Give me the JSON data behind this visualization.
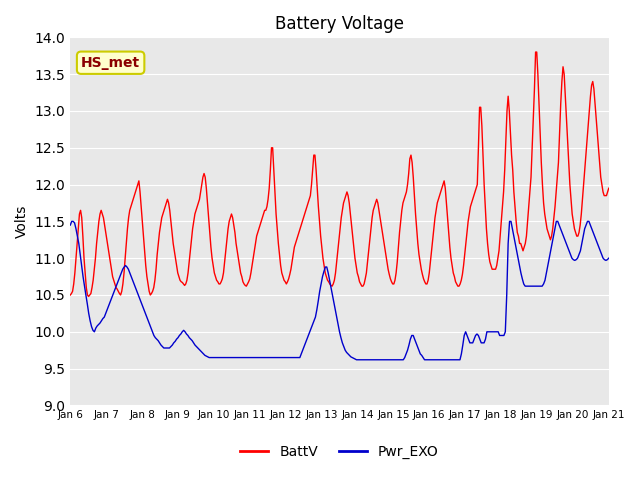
{
  "title": "Battery Voltage",
  "ylabel": "Volts",
  "ylim": [
    9.0,
    14.0
  ],
  "yticks": [
    9.0,
    9.5,
    10.0,
    10.5,
    11.0,
    11.5,
    12.0,
    12.5,
    13.0,
    13.5,
    14.0
  ],
  "bg_color": "#e8e8e8",
  "fig_bg_color": "#ffffff",
  "line1_color": "#ff0000",
  "line2_color": "#0000cc",
  "line1_label": "BattV",
  "line2_label": "Pwr_EXO",
  "label_box_text": "HS_met",
  "label_box_facecolor": "#ffffcc",
  "label_box_edgecolor": "#cccc00",
  "label_box_textcolor": "#8b0000",
  "xtick_labels": [
    "Jan 6",
    "Jan 7",
    "Jan 8",
    "Jan 9",
    "Jan 10",
    "Jan 11",
    "Jan 12",
    "Jan 13",
    "Jan 14",
    "Jan 15",
    "Jan 16",
    "Jan 17",
    "Jan 18",
    "Jan 19",
    "Jan 20",
    "Jan 21"
  ],
  "battv": [
    10.5,
    10.52,
    10.55,
    10.65,
    10.8,
    11.0,
    11.2,
    11.4,
    11.6,
    11.65,
    11.55,
    11.3,
    11.0,
    10.8,
    10.6,
    10.5,
    10.48,
    10.5,
    10.52,
    10.6,
    10.7,
    10.85,
    11.0,
    11.2,
    11.35,
    11.5,
    11.6,
    11.65,
    11.6,
    11.55,
    11.45,
    11.35,
    11.25,
    11.15,
    11.05,
    10.95,
    10.85,
    10.75,
    10.7,
    10.65,
    10.6,
    10.58,
    10.55,
    10.52,
    10.5,
    10.55,
    10.65,
    10.8,
    11.0,
    11.2,
    11.4,
    11.55,
    11.65,
    11.7,
    11.75,
    11.8,
    11.85,
    11.9,
    11.95,
    12.0,
    12.05,
    11.9,
    11.7,
    11.5,
    11.3,
    11.1,
    10.9,
    10.75,
    10.65,
    10.55,
    10.5,
    10.52,
    10.55,
    10.6,
    10.7,
    10.85,
    11.05,
    11.2,
    11.35,
    11.45,
    11.55,
    11.6,
    11.65,
    11.7,
    11.75,
    11.8,
    11.75,
    11.65,
    11.5,
    11.35,
    11.2,
    11.1,
    11.0,
    10.9,
    10.8,
    10.75,
    10.7,
    10.68,
    10.67,
    10.65,
    10.63,
    10.65,
    10.7,
    10.8,
    10.95,
    11.1,
    11.25,
    11.4,
    11.5,
    11.6,
    11.65,
    11.7,
    11.75,
    11.8,
    11.9,
    12.0,
    12.1,
    12.15,
    12.1,
    11.95,
    11.75,
    11.55,
    11.35,
    11.15,
    11.0,
    10.9,
    10.8,
    10.75,
    10.7,
    10.68,
    10.65,
    10.65,
    10.68,
    10.72,
    10.8,
    10.95,
    11.1,
    11.25,
    11.4,
    11.5,
    11.55,
    11.6,
    11.55,
    11.45,
    11.35,
    11.2,
    11.1,
    11.0,
    10.9,
    10.8,
    10.75,
    10.68,
    10.65,
    10.63,
    10.62,
    10.65,
    10.68,
    10.72,
    10.8,
    10.9,
    11.0,
    11.1,
    11.2,
    11.3,
    11.35,
    11.4,
    11.45,
    11.5,
    11.55,
    11.6,
    11.65,
    11.65,
    11.7,
    11.8,
    11.95,
    12.2,
    12.5,
    12.5,
    12.2,
    11.9,
    11.6,
    11.4,
    11.2,
    11.05,
    10.9,
    10.8,
    10.75,
    10.7,
    10.68,
    10.65,
    10.68,
    10.72,
    10.78,
    10.85,
    10.95,
    11.05,
    11.15,
    11.2,
    11.25,
    11.3,
    11.35,
    11.4,
    11.45,
    11.5,
    11.55,
    11.6,
    11.65,
    11.7,
    11.75,
    11.8,
    11.85,
    12.0,
    12.2,
    12.4,
    12.4,
    12.2,
    11.95,
    11.7,
    11.5,
    11.3,
    11.15,
    11.0,
    10.9,
    10.8,
    10.75,
    10.7,
    10.68,
    10.65,
    10.63,
    10.62,
    10.65,
    10.7,
    10.8,
    10.95,
    11.1,
    11.25,
    11.4,
    11.55,
    11.65,
    11.75,
    11.8,
    11.85,
    11.9,
    11.85,
    11.75,
    11.6,
    11.45,
    11.3,
    11.15,
    11.0,
    10.9,
    10.8,
    10.75,
    10.68,
    10.65,
    10.62,
    10.62,
    10.65,
    10.72,
    10.8,
    10.95,
    11.1,
    11.25,
    11.4,
    11.55,
    11.65,
    11.7,
    11.75,
    11.8,
    11.75,
    11.65,
    11.55,
    11.45,
    11.35,
    11.25,
    11.15,
    11.05,
    10.95,
    10.85,
    10.78,
    10.72,
    10.68,
    10.65,
    10.65,
    10.7,
    10.8,
    10.95,
    11.15,
    11.35,
    11.5,
    11.65,
    11.75,
    11.8,
    11.85,
    11.9,
    12.0,
    12.15,
    12.35,
    12.4,
    12.3,
    12.1,
    11.85,
    11.6,
    11.4,
    11.2,
    11.05,
    10.95,
    10.85,
    10.78,
    10.72,
    10.68,
    10.65,
    10.65,
    10.7,
    10.8,
    10.95,
    11.1,
    11.25,
    11.4,
    11.55,
    11.65,
    11.75,
    11.8,
    11.85,
    11.9,
    11.95,
    12.0,
    12.05,
    11.95,
    11.75,
    11.55,
    11.35,
    11.15,
    11.0,
    10.9,
    10.8,
    10.75,
    10.68,
    10.65,
    10.62,
    10.62,
    10.65,
    10.7,
    10.78,
    10.9,
    11.05,
    11.2,
    11.35,
    11.5,
    11.6,
    11.7,
    11.75,
    11.8,
    11.85,
    11.9,
    11.95,
    12.0,
    12.5,
    13.05,
    13.05,
    12.8,
    12.4,
    12.0,
    11.7,
    11.4,
    11.2,
    11.05,
    10.95,
    10.9,
    10.85,
    10.85,
    10.85,
    10.85,
    10.9,
    11.0,
    11.1,
    11.3,
    11.5,
    11.7,
    11.9,
    12.2,
    12.6,
    13.0,
    13.2,
    13.0,
    12.7,
    12.4,
    12.2,
    11.9,
    11.7,
    11.5,
    11.35,
    11.3,
    11.2,
    11.2,
    11.15,
    11.1,
    11.15,
    11.2,
    11.3,
    11.5,
    11.7,
    11.9,
    12.1,
    12.5,
    12.9,
    13.3,
    13.8,
    13.8,
    13.5,
    13.1,
    12.7,
    12.3,
    12.0,
    11.75,
    11.6,
    11.5,
    11.4,
    11.35,
    11.3,
    11.25,
    11.3,
    11.4,
    11.55,
    11.7,
    11.9,
    12.1,
    12.3,
    12.7,
    13.1,
    13.4,
    13.6,
    13.5,
    13.2,
    12.9,
    12.6,
    12.3,
    12.0,
    11.8,
    11.6,
    11.5,
    11.4,
    11.35,
    11.3,
    11.3,
    11.35,
    11.45,
    11.6,
    11.8,
    12.0,
    12.2,
    12.4,
    12.6,
    12.8,
    13.0,
    13.2,
    13.35,
    13.4,
    13.3,
    13.1,
    12.9,
    12.7,
    12.5,
    12.3,
    12.1,
    12.0,
    11.9,
    11.85,
    11.85,
    11.85,
    11.9,
    11.95
  ],
  "pwr_exo": [
    11.45,
    11.5,
    11.5,
    11.48,
    11.4,
    11.3,
    11.2,
    11.05,
    10.9,
    10.75,
    10.62,
    10.5,
    10.38,
    10.25,
    10.15,
    10.07,
    10.02,
    10.0,
    10.05,
    10.08,
    10.1,
    10.12,
    10.15,
    10.18,
    10.2,
    10.25,
    10.3,
    10.35,
    10.4,
    10.45,
    10.5,
    10.55,
    10.6,
    10.65,
    10.7,
    10.75,
    10.8,
    10.85,
    10.88,
    10.9,
    10.88,
    10.85,
    10.8,
    10.75,
    10.7,
    10.65,
    10.6,
    10.55,
    10.5,
    10.45,
    10.4,
    10.35,
    10.3,
    10.25,
    10.2,
    10.15,
    10.1,
    10.05,
    10.0,
    9.95,
    9.92,
    9.9,
    9.88,
    9.85,
    9.82,
    9.8,
    9.78,
    9.78,
    9.78,
    9.78,
    9.78,
    9.8,
    9.82,
    9.85,
    9.87,
    9.9,
    9.92,
    9.95,
    9.97,
    10.0,
    10.02,
    10.0,
    9.97,
    9.95,
    9.92,
    9.9,
    9.88,
    9.85,
    9.82,
    9.8,
    9.78,
    9.76,
    9.74,
    9.72,
    9.7,
    9.68,
    9.67,
    9.66,
    9.65,
    9.65,
    9.65,
    9.65,
    9.65,
    9.65,
    9.65,
    9.65,
    9.65,
    9.65,
    9.65,
    9.65,
    9.65,
    9.65,
    9.65,
    9.65,
    9.65,
    9.65,
    9.65,
    9.65,
    9.65,
    9.65,
    9.65,
    9.65,
    9.65,
    9.65,
    9.65,
    9.65,
    9.65,
    9.65,
    9.65,
    9.65,
    9.65,
    9.65,
    9.65,
    9.65,
    9.65,
    9.65,
    9.65,
    9.65,
    9.65,
    9.65,
    9.65,
    9.65,
    9.65,
    9.65,
    9.65,
    9.65,
    9.65,
    9.65,
    9.65,
    9.65,
    9.65,
    9.65,
    9.65,
    9.65,
    9.65,
    9.65,
    9.65,
    9.65,
    9.65,
    9.65,
    9.65,
    9.65,
    9.65,
    9.7,
    9.75,
    9.8,
    9.85,
    9.9,
    9.95,
    10.0,
    10.05,
    10.1,
    10.15,
    10.2,
    10.3,
    10.42,
    10.55,
    10.65,
    10.75,
    10.82,
    10.88,
    10.88,
    10.8,
    10.7,
    10.6,
    10.5,
    10.4,
    10.3,
    10.2,
    10.1,
    10.0,
    9.92,
    9.85,
    9.8,
    9.75,
    9.72,
    9.7,
    9.68,
    9.66,
    9.65,
    9.64,
    9.63,
    9.62,
    9.62,
    9.62,
    9.62,
    9.62,
    9.62,
    9.62,
    9.62,
    9.62,
    9.62,
    9.62,
    9.62,
    9.62,
    9.62,
    9.62,
    9.62,
    9.62,
    9.62,
    9.62,
    9.62,
    9.62,
    9.62,
    9.62,
    9.62,
    9.62,
    9.62,
    9.62,
    9.62,
    9.62,
    9.62,
    9.62,
    9.62,
    9.62,
    9.62,
    9.65,
    9.7,
    9.75,
    9.82,
    9.9,
    9.95,
    9.95,
    9.9,
    9.85,
    9.8,
    9.75,
    9.7,
    9.68,
    9.65,
    9.62,
    9.62,
    9.62,
    9.62,
    9.62,
    9.62,
    9.62,
    9.62,
    9.62,
    9.62,
    9.62,
    9.62,
    9.62,
    9.62,
    9.62,
    9.62,
    9.62,
    9.62,
    9.62,
    9.62,
    9.62,
    9.62,
    9.62,
    9.62,
    9.62,
    9.62,
    9.7,
    9.82,
    9.95,
    10.0,
    9.95,
    9.9,
    9.85,
    9.85,
    9.85,
    9.9,
    9.95,
    9.97,
    9.95,
    9.9,
    9.85,
    9.85,
    9.85,
    9.9,
    10.0,
    10.0,
    10.0,
    10.0,
    10.0,
    10.0,
    10.0,
    10.0,
    10.0,
    9.95,
    9.95,
    9.95,
    9.95,
    10.0,
    10.5,
    11.2,
    11.5,
    11.5,
    11.4,
    11.3,
    11.2,
    11.1,
    11.0,
    10.9,
    10.8,
    10.72,
    10.65,
    10.62,
    10.62,
    10.62,
    10.62,
    10.62,
    10.62,
    10.62,
    10.62,
    10.62,
    10.62,
    10.62,
    10.62,
    10.62,
    10.65,
    10.7,
    10.8,
    10.9,
    11.0,
    11.1,
    11.2,
    11.3,
    11.4,
    11.5,
    11.5,
    11.45,
    11.4,
    11.35,
    11.3,
    11.25,
    11.2,
    11.15,
    11.1,
    11.05,
    11.0,
    10.98,
    10.97,
    10.98,
    11.0,
    11.05,
    11.1,
    11.2,
    11.3,
    11.4,
    11.45,
    11.5,
    11.5,
    11.45,
    11.4,
    11.35,
    11.3,
    11.25,
    11.2,
    11.15,
    11.1,
    11.05,
    11.0,
    10.98,
    10.97,
    10.98,
    11.0
  ]
}
